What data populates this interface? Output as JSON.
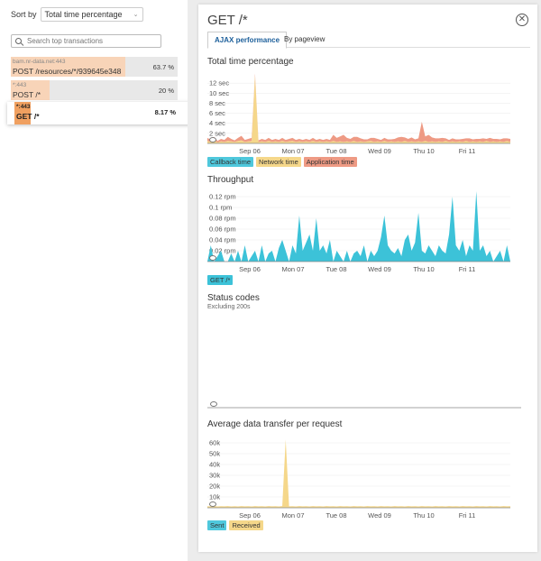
{
  "sidebar": {
    "sort_label": "Sort by",
    "sort_value": "Total time percentage",
    "search_placeholder": "Search top transactions",
    "transactions": [
      {
        "host": "bam.nr-data.net:443",
        "path": "POST /resources/*/939645e348",
        "pct": "63.7 %",
        "fill": 0.687
      },
      {
        "host": "*:443",
        "path": "POST /*",
        "pct": "20 %",
        "fill": 0.232
      },
      {
        "host": "*:443",
        "path": "GET /*",
        "pct": "8.17 %",
        "fill": 0.085
      }
    ]
  },
  "panel": {
    "title": "GET /*",
    "tabs": [
      "AJAX performance",
      "By pageview"
    ]
  },
  "charts": {
    "total_time": {
      "title": "Total time percentage",
      "legend": [
        "Callback time",
        "Network time",
        "Application time"
      ]
    },
    "throughput": {
      "title": "Throughput",
      "legend": [
        "GET /*"
      ]
    },
    "status": {
      "title": "Status codes",
      "subtitle": "Excluding 200s"
    },
    "transfer": {
      "title": "Average data transfer per request",
      "legend": [
        "Sent",
        "Received"
      ]
    }
  },
  "colors": {
    "callback": "#4fc8dc",
    "network": "#f5d78a",
    "application": "#ee9a84",
    "throughput": "#3cc2d8",
    "received": "#f5d78a",
    "sent": "#4fc8dc"
  },
  "chart_data": [
    {
      "type": "area",
      "title": "Total time percentage",
      "x_ticks": [
        "Sep 06",
        "Mon 07",
        "Tue 08",
        "Wed 09",
        "Thu 10",
        "Fri 11"
      ],
      "y_ticks": [
        "2 sec",
        "4 sec",
        "6 sec",
        "8 sec",
        "10 sec",
        "12 sec"
      ],
      "ylim": [
        0,
        14
      ],
      "series": [
        {
          "name": "Callback time",
          "values": [
            0,
            0,
            0,
            0,
            0,
            0,
            0,
            0,
            0,
            0,
            0,
            0,
            0,
            0,
            0,
            0,
            0,
            0,
            0,
            0,
            0,
            0,
            0,
            0,
            0,
            0,
            0,
            0,
            0,
            0,
            0,
            0,
            0,
            0,
            0,
            0,
            0,
            0,
            0,
            0,
            0,
            0,
            0,
            0,
            0,
            0,
            0,
            0,
            0,
            0,
            0,
            0,
            0,
            0,
            0,
            0,
            0,
            0,
            0,
            0,
            0,
            0,
            0,
            0,
            0,
            0,
            0,
            0,
            0,
            0,
            0,
            0,
            0,
            0,
            0,
            0,
            0,
            0,
            0,
            0,
            0,
            0,
            0,
            0,
            0,
            0,
            0,
            0,
            0,
            0
          ]
        },
        {
          "name": "Network time",
          "values": [
            0.5,
            0.3,
            0.6,
            0.2,
            0.4,
            0.3,
            0.5,
            0.4,
            0.3,
            0.5,
            0.6,
            0.3,
            0.4,
            0.5,
            13.5,
            0.3,
            0.4,
            0.3,
            0.5,
            0.3,
            0.4,
            0.3,
            0.5,
            0.3,
            0.4,
            0.5,
            0.3,
            0.4,
            0.3,
            0.4,
            0.3,
            0.5,
            0.3,
            0.4,
            0.3,
            0.4,
            0.3,
            0.5,
            0.3,
            0.4,
            0.3,
            0.4,
            0.3,
            0.5,
            0.3,
            0.4,
            0.3,
            0.4,
            0.5,
            0.3,
            0.4,
            0.3,
            0.5,
            0.3,
            0.4,
            0.3,
            0.4,
            0.3,
            0.5,
            0.3,
            0.4,
            0.3,
            0.4,
            0.3,
            0.5,
            0.3,
            0.4,
            0.3,
            0.4,
            0.3,
            0.5,
            0.3,
            0.4,
            0.3,
            0.4,
            0.3,
            0.5,
            0.3,
            0.4,
            0.3,
            0.4,
            0.3,
            0.5,
            0.3,
            0.4,
            0.3,
            0.4,
            0.3,
            0.5,
            0.3
          ]
        },
        {
          "name": "Application time",
          "values": [
            0.6,
            0.4,
            0.7,
            0.3,
            0.5,
            0.4,
            0.8,
            0.5,
            0.3,
            0.6,
            0.9,
            0.4,
            0.5,
            0.6,
            0.4,
            0.3,
            0.5,
            0.4,
            0.6,
            0.4,
            0.5,
            0.4,
            0.6,
            0.4,
            0.5,
            0.6,
            0.4,
            0.5,
            0.4,
            0.5,
            0.4,
            0.6,
            0.4,
            0.5,
            0.4,
            0.5,
            0.4,
            1.2,
            0.8,
            1.0,
            1.4,
            0.7,
            0.6,
            0.8,
            1.0,
            0.6,
            0.5,
            0.4,
            0.6,
            0.8,
            0.5,
            0.4,
            0.6,
            0.5,
            0.4,
            0.6,
            0.8,
            1.0,
            0.7,
            0.6,
            0.8,
            0.5,
            0.6,
            4.0,
            0.9,
            1.4,
            0.8,
            0.7,
            0.6,
            0.8,
            0.5,
            0.4,
            0.6,
            0.5,
            0.4,
            0.6,
            0.5,
            0.7,
            0.4,
            0.6,
            0.5,
            0.7,
            0.4,
            0.8,
            0.5,
            0.6,
            0.4,
            0.7,
            0.5,
            0.6
          ]
        }
      ]
    },
    {
      "type": "area",
      "title": "Throughput",
      "x_ticks": [
        "Sep 06",
        "Mon 07",
        "Tue 08",
        "Wed 09",
        "Thu 10",
        "Fri 11"
      ],
      "y_ticks": [
        "0.02 rpm",
        "0.04 rpm",
        "0.06 rpm",
        "0.08 rpm",
        "0.1 rpm",
        "0.12 rpm"
      ],
      "ylim": [
        0,
        0.13
      ],
      "series": [
        {
          "name": "GET /*",
          "values": [
            0,
            0.03,
            0,
            0.01,
            0.02,
            0,
            0,
            0.015,
            0,
            0.02,
            0,
            0.03,
            0,
            0.01,
            0.02,
            0,
            0.03,
            0,
            0.015,
            0.02,
            0,
            0.025,
            0.04,
            0.02,
            0,
            0.03,
            0.015,
            0.085,
            0.02,
            0.035,
            0.05,
            0.02,
            0.08,
            0.02,
            0.03,
            0.015,
            0.04,
            0,
            0.02,
            0.01,
            0,
            0.02,
            0,
            0.015,
            0.02,
            0.01,
            0.03,
            0,
            0.02,
            0.01,
            0.02,
            0.045,
            0.085,
            0.03,
            0.02,
            0.015,
            0.025,
            0.01,
            0.04,
            0.05,
            0.02,
            0.035,
            0.09,
            0.02,
            0.015,
            0.03,
            0.02,
            0.01,
            0.03,
            0.02,
            0.015,
            0.05,
            0.12,
            0.03,
            0.02,
            0.04,
            0.01,
            0.03,
            0.02,
            0.13,
            0.02,
            0.03,
            0.01,
            0.02,
            0,
            0.01,
            0.02,
            0,
            0.03,
            0
          ]
        }
      ]
    },
    {
      "type": "area",
      "title": "Average data transfer per request",
      "x_ticks": [
        "Sep 06",
        "Mon 07",
        "Tue 08",
        "Wed 09",
        "Thu 10",
        "Fri 11"
      ],
      "y_ticks": [
        "10k",
        "20k",
        "30k",
        "40k",
        "50k",
        "60k"
      ],
      "ylim": [
        0,
        65000
      ],
      "series": [
        {
          "name": "Sent",
          "values": [
            0
          ]
        },
        {
          "name": "Received",
          "values": [
            1500,
            1200,
            1600,
            1300,
            1500,
            1400,
            1600,
            1200,
            1500,
            1300,
            1600,
            1400,
            1500,
            1300,
            1600,
            1400,
            1500,
            1300,
            1600,
            1400,
            1500,
            1300,
            1600,
            63000,
            1400,
            1500,
            1300,
            1600,
            1400,
            1500,
            1300,
            1600,
            1400,
            1500,
            1300,
            1600,
            1400,
            1500,
            1300,
            1600,
            1400,
            1500,
            1300,
            1600,
            1400,
            1500,
            1300,
            1600,
            1400,
            1500,
            1300,
            1600,
            1400,
            1500,
            1300,
            1600,
            1400,
            1500,
            1300,
            1600,
            1400,
            1500,
            1300,
            1600,
            1400,
            1500,
            1300,
            1600,
            1400,
            1500,
            1300,
            1600,
            1400,
            1500,
            1300,
            1600,
            1400,
            1500,
            1300,
            1600,
            1400,
            1500,
            1300,
            1600,
            1400,
            1500,
            1300,
            1600,
            1400,
            1500
          ]
        }
      ]
    }
  ]
}
